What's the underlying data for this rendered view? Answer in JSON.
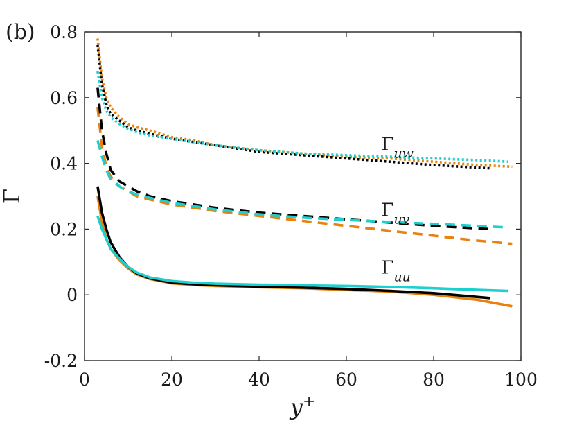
{
  "chart_data": {
    "type": "line",
    "panel_label": "(b)",
    "xlabel_base": "y",
    "xlabel_sup": "+",
    "ylabel": "Γ",
    "xlim": [
      0,
      100
    ],
    "ylim": [
      -0.2,
      0.8
    ],
    "x_ticks": [
      0,
      20,
      40,
      60,
      80,
      100
    ],
    "x_tick_labels": [
      "0",
      "20",
      "40",
      "60",
      "80",
      "100"
    ],
    "y_ticks": [
      -0.2,
      0,
      0.2,
      0.4,
      0.6,
      0.8
    ],
    "y_tick_labels": [
      "-0.2",
      "0",
      "0.2",
      "0.4",
      "0.6",
      "0.8"
    ],
    "grid": false,
    "legend": "none",
    "series_labels": [
      {
        "base": "Γ",
        "sub": "uw",
        "x": 68,
        "y": 0.44
      },
      {
        "base": "Γ",
        "sub": "uv",
        "x": 68,
        "y": 0.24
      },
      {
        "base": "Γ",
        "sub": "uu",
        "x": 68,
        "y": 0.065
      }
    ],
    "series": [
      {
        "group": "uw",
        "color": "#e8820f",
        "style": "dotted",
        "x": [
          3,
          4,
          5,
          6,
          8,
          10,
          12,
          15,
          20,
          25,
          30,
          40,
          50,
          60,
          70,
          80,
          90,
          98
        ],
        "y": [
          0.78,
          0.66,
          0.6,
          0.57,
          0.54,
          0.52,
          0.51,
          0.5,
          0.48,
          0.47,
          0.455,
          0.44,
          0.43,
          0.42,
          0.415,
          0.405,
          0.395,
          0.39
        ]
      },
      {
        "group": "uw",
        "color": "#000000",
        "style": "dotted",
        "x": [
          3,
          4,
          5,
          6,
          8,
          10,
          12,
          15,
          20,
          25,
          30,
          40,
          50,
          60,
          70,
          80,
          93
        ],
        "y": [
          0.76,
          0.64,
          0.58,
          0.55,
          0.53,
          0.51,
          0.5,
          0.49,
          0.475,
          0.465,
          0.455,
          0.435,
          0.425,
          0.415,
          0.405,
          0.395,
          0.385
        ]
      },
      {
        "group": "uw",
        "color": "#1ecfcf",
        "style": "dotted",
        "x": [
          3,
          4,
          5,
          6,
          8,
          10,
          12,
          15,
          20,
          25,
          30,
          40,
          50,
          60,
          70,
          80,
          90,
          97
        ],
        "y": [
          0.68,
          0.6,
          0.56,
          0.54,
          0.52,
          0.505,
          0.495,
          0.485,
          0.475,
          0.465,
          0.455,
          0.44,
          0.43,
          0.425,
          0.42,
          0.415,
          0.41,
          0.405
        ]
      },
      {
        "group": "uv",
        "color": "#e8820f",
        "style": "dashed",
        "x": [
          3,
          4,
          5,
          6,
          8,
          10,
          12,
          15,
          20,
          25,
          30,
          40,
          50,
          60,
          70,
          80,
          90,
          98
        ],
        "y": [
          0.57,
          0.45,
          0.39,
          0.36,
          0.33,
          0.315,
          0.3,
          0.29,
          0.275,
          0.265,
          0.255,
          0.24,
          0.225,
          0.21,
          0.195,
          0.18,
          0.165,
          0.155
        ]
      },
      {
        "group": "uv",
        "color": "#000000",
        "style": "dashed",
        "x": [
          3,
          4,
          5,
          6,
          8,
          10,
          12,
          15,
          20,
          25,
          30,
          40,
          50,
          60,
          70,
          80,
          93
        ],
        "y": [
          0.63,
          0.5,
          0.43,
          0.38,
          0.345,
          0.33,
          0.315,
          0.3,
          0.285,
          0.275,
          0.265,
          0.25,
          0.24,
          0.23,
          0.22,
          0.21,
          0.2
        ]
      },
      {
        "group": "uv",
        "color": "#1ecfcf",
        "style": "dashed",
        "x": [
          3,
          4,
          5,
          6,
          8,
          10,
          12,
          15,
          20,
          25,
          30,
          40,
          50,
          60,
          70,
          80,
          90,
          97
        ],
        "y": [
          0.47,
          0.42,
          0.38,
          0.35,
          0.33,
          0.315,
          0.305,
          0.295,
          0.28,
          0.27,
          0.26,
          0.245,
          0.235,
          0.228,
          0.222,
          0.216,
          0.21,
          0.205
        ]
      },
      {
        "group": "uu",
        "color": "#e8820f",
        "style": "solid",
        "x": [
          3,
          4,
          5,
          6,
          8,
          10,
          12,
          15,
          20,
          25,
          30,
          40,
          50,
          60,
          70,
          80,
          90,
          98
        ],
        "y": [
          0.3,
          0.22,
          0.17,
          0.14,
          0.105,
          0.08,
          0.062,
          0.048,
          0.035,
          0.03,
          0.027,
          0.023,
          0.02,
          0.015,
          0.01,
          0.0,
          -0.015,
          -0.035
        ]
      },
      {
        "group": "uu",
        "color": "#000000",
        "style": "solid",
        "x": [
          3,
          4,
          5,
          6,
          8,
          10,
          12,
          15,
          20,
          25,
          30,
          40,
          50,
          60,
          70,
          80,
          93
        ],
        "y": [
          0.33,
          0.25,
          0.2,
          0.16,
          0.115,
          0.085,
          0.065,
          0.05,
          0.037,
          0.032,
          0.029,
          0.025,
          0.022,
          0.018,
          0.012,
          0.005,
          -0.01
        ]
      },
      {
        "group": "uu",
        "color": "#1ecfcf",
        "style": "solid",
        "x": [
          3,
          4,
          5,
          6,
          8,
          10,
          12,
          15,
          20,
          25,
          30,
          40,
          50,
          60,
          70,
          80,
          90,
          97
        ],
        "y": [
          0.24,
          0.2,
          0.17,
          0.14,
          0.11,
          0.085,
          0.068,
          0.053,
          0.042,
          0.037,
          0.034,
          0.031,
          0.029,
          0.027,
          0.024,
          0.02,
          0.015,
          0.012
        ]
      }
    ]
  }
}
